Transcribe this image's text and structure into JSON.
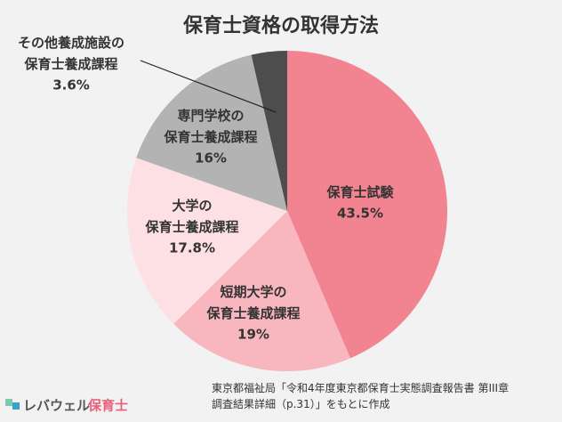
{
  "chart_data": {
    "type": "pie",
    "title": "保育士資格の取得方法",
    "categories": [
      "保育士試験",
      "短期大学の\n保育士養成課程",
      "大学の\n保育士養成課程",
      "専門学校の\n保育士養成課程",
      "その他養成施設の\n保育士養成課程"
    ],
    "values": [
      43.5,
      19,
      17.8,
      16,
      3.6
    ],
    "value_labels": [
      "43.5%",
      "19%",
      "17.8%",
      "16%",
      "3.6%"
    ],
    "colors": [
      "#f28391",
      "#f8b6bf",
      "#fde0e3",
      "#b3b3b3",
      "#4d4d4d"
    ],
    "source": "東京都福祉局「令和4年度東京都保育士実態調査報告書 第III章\n調査結果詳細（p.31）」をもとに作成"
  },
  "logo": {
    "brand": "レバウェル",
    "service": "保育士"
  }
}
